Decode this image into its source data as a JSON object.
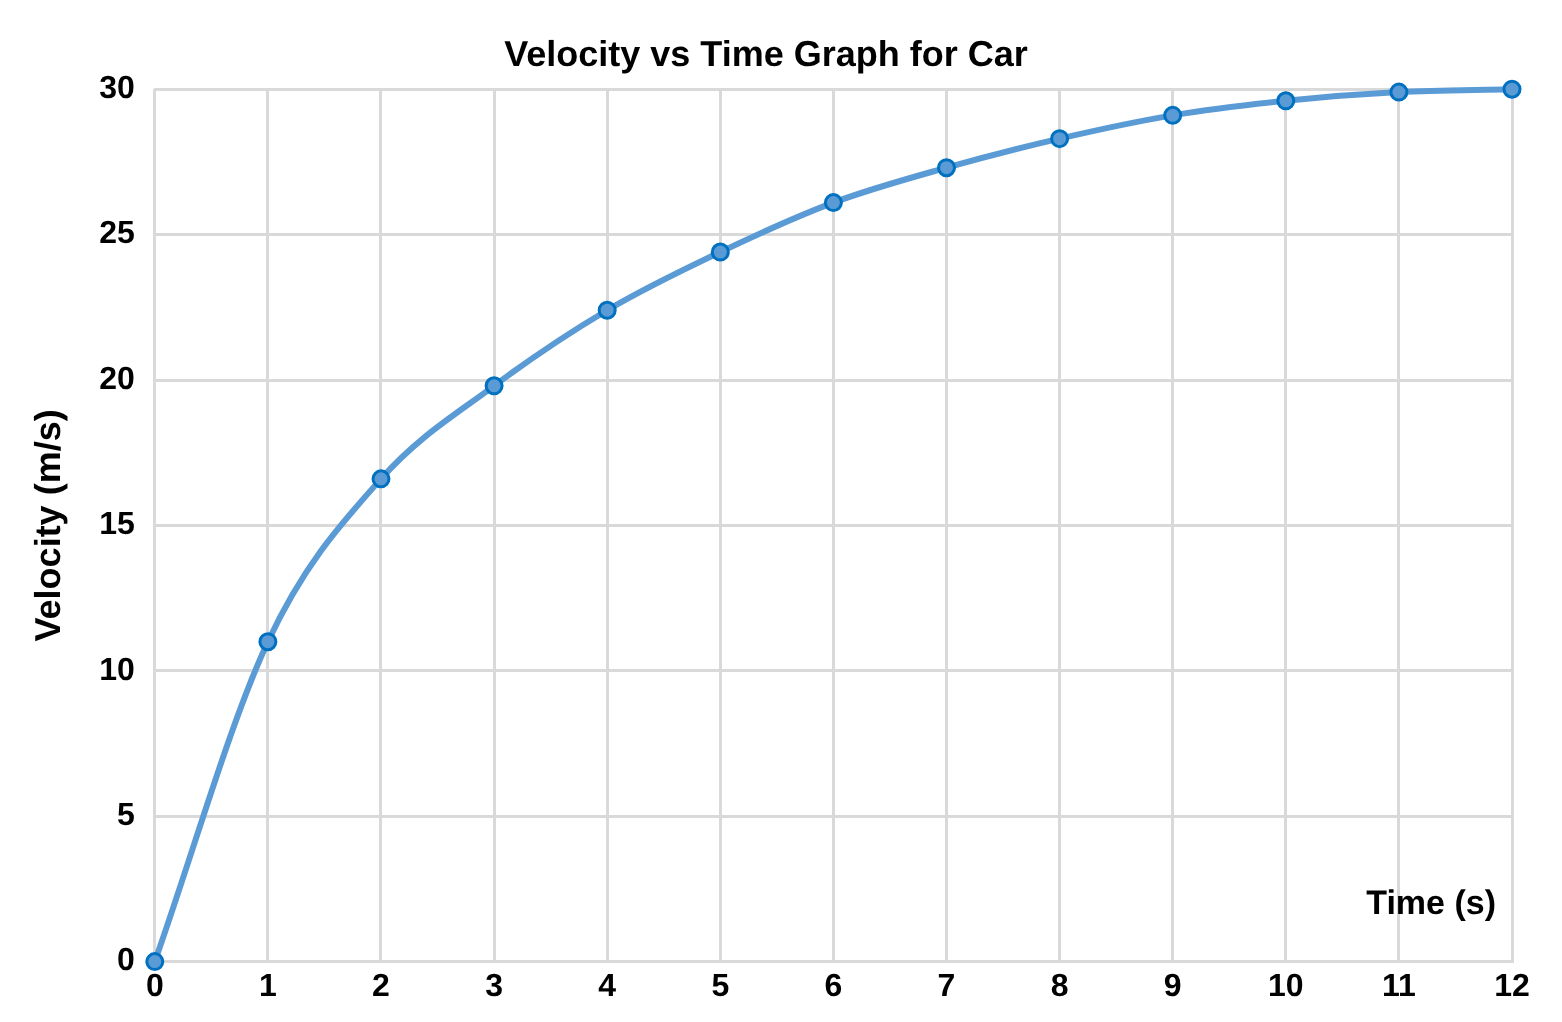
{
  "chart_data": {
    "type": "line",
    "title": "Velocity vs Time Graph for Car",
    "xlabel": "Time (s)",
    "ylabel": "Velocity (m/s)",
    "x": [
      0,
      1,
      2,
      3,
      4,
      5,
      6,
      7,
      8,
      9,
      10,
      11,
      12
    ],
    "series": [
      {
        "color": "#5b9bd5",
        "values": [
          0,
          11.0,
          16.6,
          19.8,
          22.4,
          24.4,
          26.1,
          27.3,
          28.3,
          29.1,
          29.6,
          29.9,
          30.0
        ]
      }
    ],
    "xlim": [
      0,
      12
    ],
    "xticks": [
      0,
      1,
      2,
      3,
      4,
      5,
      6,
      7,
      8,
      9,
      10,
      11,
      12
    ],
    "ylim": [
      0,
      30
    ],
    "yticks": [
      0,
      5,
      10,
      15,
      20,
      25,
      30
    ],
    "grid": true,
    "legend": false,
    "marker": "circle",
    "line_style": "solid"
  }
}
